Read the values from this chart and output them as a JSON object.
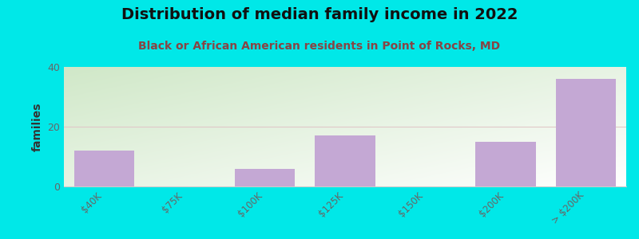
{
  "title": "Distribution of median family income in 2022",
  "subtitle": "Black or African American residents in Point of Rocks, MD",
  "categories": [
    "$40K",
    "$75K",
    "$100K",
    "$125K",
    "$150K",
    "$200K",
    "> $200K"
  ],
  "values": [
    12,
    0,
    6,
    17,
    0,
    15,
    36
  ],
  "bar_color": "#c4a8d4",
  "ylabel": "families",
  "ylim": [
    0,
    40
  ],
  "yticks": [
    0,
    20,
    40
  ],
  "gridline_color": "#e0c8c8",
  "background_outer": "#00e8e8",
  "grad_color_top": "#d0e8c8",
  "grad_color_bottom": "#f5fff5",
  "title_fontsize": 14,
  "subtitle_fontsize": 10,
  "subtitle_color": "#884444",
  "title_color": "#111111"
}
